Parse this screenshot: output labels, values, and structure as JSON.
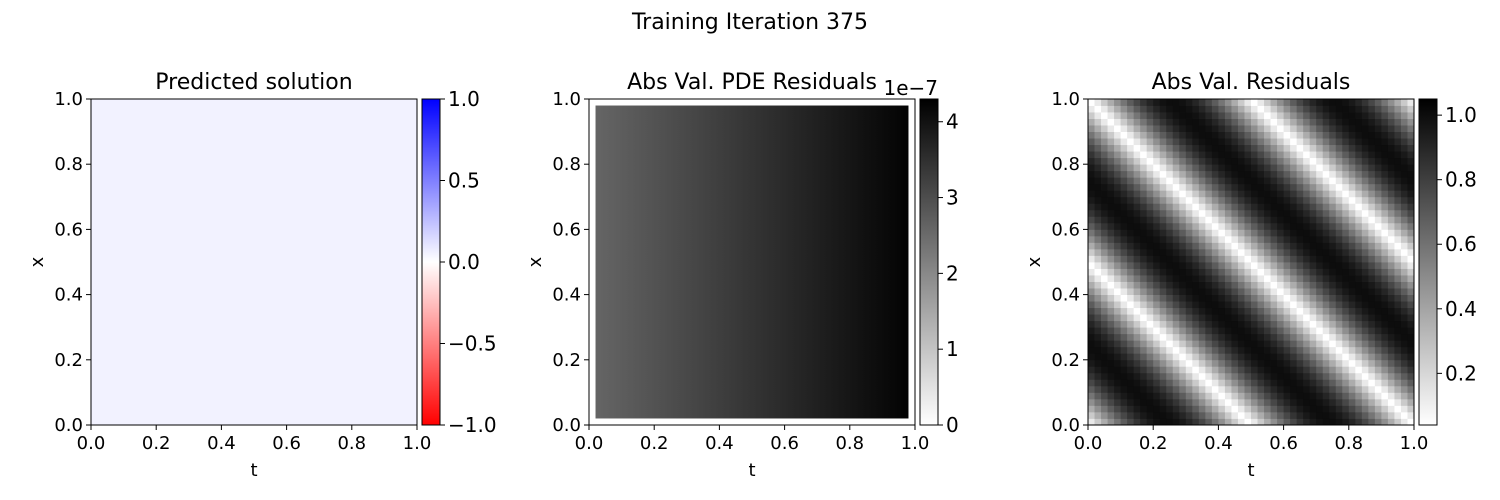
{
  "suptitle": "Training Iteration 375",
  "chart_data": [
    {
      "type": "heatmap",
      "title": "Predicted solution",
      "xlabel": "t",
      "ylabel": "x",
      "xlim": [
        0.0,
        1.0
      ],
      "ylim": [
        0.0,
        1.0
      ],
      "x_ticks": [
        "0.0",
        "0.2",
        "0.4",
        "0.6",
        "0.8",
        "1.0"
      ],
      "y_ticks": [
        "0.0",
        "0.2",
        "0.4",
        "0.6",
        "0.8",
        "1.0"
      ],
      "field": "constant",
      "value": 0.05,
      "colormap": "bwr",
      "colorbar": {
        "range": [
          -1.0,
          1.0
        ],
        "ticks": [
          1.0,
          0.5,
          0.0,
          -0.5,
          -1.0
        ],
        "tick_labels": [
          "1.0",
          "0.5",
          "0.0",
          "−0.5",
          "−1.0"
        ],
        "offset_label": ""
      }
    },
    {
      "type": "heatmap",
      "title": "Abs Val. PDE Residuals",
      "xlabel": "t",
      "ylabel": "x",
      "xlim": [
        0.0,
        1.0
      ],
      "ylim": [
        0.0,
        1.0
      ],
      "x_ticks": [
        "0.0",
        "0.2",
        "0.4",
        "0.6",
        "0.8",
        "1.0"
      ],
      "y_ticks": [
        "0.0",
        "0.2",
        "0.4",
        "0.6",
        "0.8",
        "1.0"
      ],
      "field": "linear_in_t",
      "value_at_t0": 2.6e-07,
      "value_at_t1": 4.25e-07,
      "data_extent": [
        0.02,
        0.98
      ],
      "colormap": "gray_r",
      "colorbar": {
        "range": [
          0,
          4.3
        ],
        "ticks": [
          4,
          3,
          2,
          1,
          0
        ],
        "tick_labels": [
          "4",
          "3",
          "2",
          "1",
          "0"
        ],
        "offset_label": "1e−7"
      }
    },
    {
      "type": "heatmap",
      "title": "Abs Val. Residuals",
      "xlabel": "t",
      "ylabel": "x",
      "xlim": [
        0.0,
        1.0
      ],
      "ylim": [
        0.0,
        1.0
      ],
      "x_ticks": [
        "0.0",
        "0.2",
        "0.4",
        "0.6",
        "0.8",
        "1.0"
      ],
      "y_ticks": [
        "0.0",
        "0.2",
        "0.4",
        "0.6",
        "0.8",
        "1.0"
      ],
      "field": "abs_sin_wave",
      "formula": "|sin(2*pi*(x + t))|",
      "grid_resolution": 50,
      "colormap": "gray_r",
      "colorbar": {
        "range": [
          0.04,
          1.05
        ],
        "ticks": [
          1.0,
          0.8,
          0.6,
          0.4,
          0.2
        ],
        "tick_labels": [
          "1.0",
          "0.8",
          "0.6",
          "0.4",
          "0.2"
        ],
        "offset_label": ""
      }
    }
  ]
}
